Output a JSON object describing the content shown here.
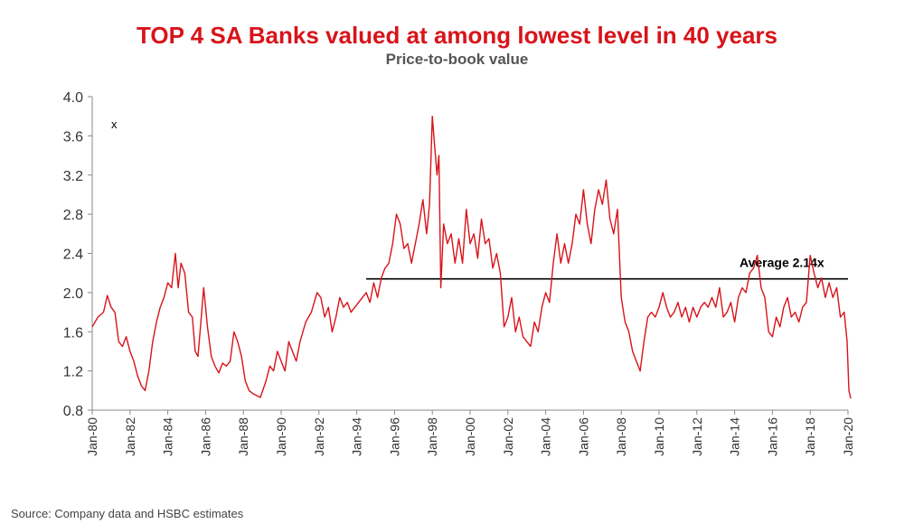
{
  "chart_data": {
    "type": "line",
    "title": "TOP 4 SA Banks valued at among lowest level in 40 years",
    "subtitle": "Price-to-book value",
    "source": "Source: Company data and HSBC estimates",
    "y_unit_marker": "x",
    "ylim": [
      0.8,
      4.0
    ],
    "y_ticks": [
      "4.0",
      "3.6",
      "3.2",
      "2.8",
      "2.4",
      "2.0",
      "1.6",
      "1.2",
      "0.8"
    ],
    "x_range": [
      1980,
      2020
    ],
    "x_ticks": [
      "Jan-80",
      "Jan-82",
      "Jan-84",
      "Jan-86",
      "Jan-88",
      "Jan-90",
      "Jan-92",
      "Jan-94",
      "Jan-96",
      "Jan-98",
      "Jan-00",
      "Jan-02",
      "Jan-04",
      "Jan-06",
      "Jan-08",
      "Jan-10",
      "Jan-12",
      "Jan-14",
      "Jan-16",
      "Jan-18",
      "Jan-20"
    ],
    "average": {
      "label": "Average  2.14x",
      "value": 2.14,
      "x_start": 1994.5,
      "x_end": 2020
    },
    "series": [
      {
        "color": "#d7141a",
        "points": [
          [
            1980.0,
            1.65
          ],
          [
            1980.3,
            1.75
          ],
          [
            1980.6,
            1.8
          ],
          [
            1980.8,
            1.97
          ],
          [
            1981.0,
            1.85
          ],
          [
            1981.2,
            1.8
          ],
          [
            1981.4,
            1.5
          ],
          [
            1981.6,
            1.45
          ],
          [
            1981.8,
            1.55
          ],
          [
            1982.0,
            1.4
          ],
          [
            1982.2,
            1.3
          ],
          [
            1982.4,
            1.15
          ],
          [
            1982.6,
            1.05
          ],
          [
            1982.8,
            1.0
          ],
          [
            1983.0,
            1.2
          ],
          [
            1983.2,
            1.5
          ],
          [
            1983.4,
            1.7
          ],
          [
            1983.6,
            1.85
          ],
          [
            1983.8,
            1.95
          ],
          [
            1984.0,
            2.1
          ],
          [
            1984.2,
            2.05
          ],
          [
            1984.4,
            2.4
          ],
          [
            1984.55,
            2.05
          ],
          [
            1984.7,
            2.3
          ],
          [
            1984.9,
            2.2
          ],
          [
            1985.1,
            1.8
          ],
          [
            1985.3,
            1.75
          ],
          [
            1985.45,
            1.4
          ],
          [
            1985.6,
            1.35
          ],
          [
            1985.75,
            1.7
          ],
          [
            1985.9,
            2.05
          ],
          [
            1986.1,
            1.65
          ],
          [
            1986.3,
            1.35
          ],
          [
            1986.5,
            1.25
          ],
          [
            1986.7,
            1.18
          ],
          [
            1986.9,
            1.28
          ],
          [
            1987.1,
            1.25
          ],
          [
            1987.3,
            1.3
          ],
          [
            1987.5,
            1.6
          ],
          [
            1987.7,
            1.5
          ],
          [
            1987.9,
            1.35
          ],
          [
            1988.1,
            1.1
          ],
          [
            1988.3,
            1.0
          ],
          [
            1988.5,
            0.97
          ],
          [
            1988.7,
            0.95
          ],
          [
            1988.9,
            0.93
          ],
          [
            1989.2,
            1.1
          ],
          [
            1989.4,
            1.25
          ],
          [
            1989.6,
            1.2
          ],
          [
            1989.8,
            1.4
          ],
          [
            1990.0,
            1.3
          ],
          [
            1990.2,
            1.2
          ],
          [
            1990.4,
            1.5
          ],
          [
            1990.6,
            1.4
          ],
          [
            1990.8,
            1.3
          ],
          [
            1991.0,
            1.5
          ],
          [
            1991.3,
            1.7
          ],
          [
            1991.6,
            1.8
          ],
          [
            1991.9,
            2.0
          ],
          [
            1992.1,
            1.95
          ],
          [
            1992.3,
            1.75
          ],
          [
            1992.5,
            1.85
          ],
          [
            1992.7,
            1.6
          ],
          [
            1992.9,
            1.75
          ],
          [
            1993.1,
            1.95
          ],
          [
            1993.3,
            1.85
          ],
          [
            1993.5,
            1.9
          ],
          [
            1993.7,
            1.8
          ],
          [
            1993.9,
            1.85
          ],
          [
            1994.1,
            1.9
          ],
          [
            1994.3,
            1.95
          ],
          [
            1994.5,
            2.0
          ],
          [
            1994.7,
            1.9
          ],
          [
            1994.9,
            2.1
          ],
          [
            1995.1,
            1.95
          ],
          [
            1995.3,
            2.15
          ],
          [
            1995.5,
            2.25
          ],
          [
            1995.7,
            2.3
          ],
          [
            1995.9,
            2.5
          ],
          [
            1996.1,
            2.8
          ],
          [
            1996.3,
            2.7
          ],
          [
            1996.5,
            2.45
          ],
          [
            1996.7,
            2.5
          ],
          [
            1996.9,
            2.3
          ],
          [
            1997.1,
            2.5
          ],
          [
            1997.3,
            2.7
          ],
          [
            1997.5,
            2.95
          ],
          [
            1997.7,
            2.6
          ],
          [
            1997.85,
            2.9
          ],
          [
            1998.0,
            3.8
          ],
          [
            1998.1,
            3.55
          ],
          [
            1998.25,
            3.2
          ],
          [
            1998.35,
            3.4
          ],
          [
            1998.45,
            2.05
          ],
          [
            1998.6,
            2.7
          ],
          [
            1998.8,
            2.5
          ],
          [
            1999.0,
            2.6
          ],
          [
            1999.2,
            2.3
          ],
          [
            1999.4,
            2.55
          ],
          [
            1999.6,
            2.3
          ],
          [
            1999.8,
            2.85
          ],
          [
            2000.0,
            2.5
          ],
          [
            2000.2,
            2.6
          ],
          [
            2000.4,
            2.35
          ],
          [
            2000.6,
            2.75
          ],
          [
            2000.8,
            2.5
          ],
          [
            2001.0,
            2.55
          ],
          [
            2001.2,
            2.25
          ],
          [
            2001.4,
            2.4
          ],
          [
            2001.6,
            2.2
          ],
          [
            2001.8,
            1.65
          ],
          [
            2002.0,
            1.75
          ],
          [
            2002.2,
            1.95
          ],
          [
            2002.4,
            1.6
          ],
          [
            2002.6,
            1.75
          ],
          [
            2002.8,
            1.55
          ],
          [
            2003.0,
            1.5
          ],
          [
            2003.2,
            1.45
          ],
          [
            2003.4,
            1.7
          ],
          [
            2003.6,
            1.6
          ],
          [
            2003.8,
            1.85
          ],
          [
            2004.0,
            2.0
          ],
          [
            2004.2,
            1.9
          ],
          [
            2004.4,
            2.3
          ],
          [
            2004.6,
            2.6
          ],
          [
            2004.8,
            2.3
          ],
          [
            2005.0,
            2.5
          ],
          [
            2005.2,
            2.3
          ],
          [
            2005.4,
            2.5
          ],
          [
            2005.6,
            2.8
          ],
          [
            2005.8,
            2.7
          ],
          [
            2006.0,
            3.05
          ],
          [
            2006.2,
            2.7
          ],
          [
            2006.4,
            2.5
          ],
          [
            2006.6,
            2.85
          ],
          [
            2006.8,
            3.05
          ],
          [
            2007.0,
            2.9
          ],
          [
            2007.2,
            3.15
          ],
          [
            2007.4,
            2.75
          ],
          [
            2007.6,
            2.6
          ],
          [
            2007.8,
            2.85
          ],
          [
            2008.0,
            1.95
          ],
          [
            2008.2,
            1.7
          ],
          [
            2008.4,
            1.6
          ],
          [
            2008.6,
            1.4
          ],
          [
            2008.8,
            1.3
          ],
          [
            2009.0,
            1.2
          ],
          [
            2009.2,
            1.5
          ],
          [
            2009.4,
            1.75
          ],
          [
            2009.6,
            1.8
          ],
          [
            2009.8,
            1.75
          ],
          [
            2010.0,
            1.85
          ],
          [
            2010.2,
            2.0
          ],
          [
            2010.4,
            1.85
          ],
          [
            2010.6,
            1.75
          ],
          [
            2010.8,
            1.8
          ],
          [
            2011.0,
            1.9
          ],
          [
            2011.2,
            1.75
          ],
          [
            2011.4,
            1.85
          ],
          [
            2011.6,
            1.7
          ],
          [
            2011.8,
            1.85
          ],
          [
            2012.0,
            1.75
          ],
          [
            2012.2,
            1.85
          ],
          [
            2012.4,
            1.9
          ],
          [
            2012.6,
            1.85
          ],
          [
            2012.8,
            1.95
          ],
          [
            2013.0,
            1.85
          ],
          [
            2013.2,
            2.05
          ],
          [
            2013.4,
            1.75
          ],
          [
            2013.6,
            1.8
          ],
          [
            2013.8,
            1.9
          ],
          [
            2014.0,
            1.7
          ],
          [
            2014.2,
            1.95
          ],
          [
            2014.4,
            2.05
          ],
          [
            2014.6,
            2.0
          ],
          [
            2014.8,
            2.2
          ],
          [
            2015.0,
            2.25
          ],
          [
            2015.2,
            2.38
          ],
          [
            2015.4,
            2.05
          ],
          [
            2015.6,
            1.95
          ],
          [
            2015.8,
            1.6
          ],
          [
            2016.0,
            1.55
          ],
          [
            2016.2,
            1.75
          ],
          [
            2016.4,
            1.65
          ],
          [
            2016.6,
            1.85
          ],
          [
            2016.8,
            1.95
          ],
          [
            2017.0,
            1.75
          ],
          [
            2017.2,
            1.8
          ],
          [
            2017.4,
            1.7
          ],
          [
            2017.6,
            1.85
          ],
          [
            2017.8,
            1.9
          ],
          [
            2018.0,
            2.38
          ],
          [
            2018.2,
            2.2
          ],
          [
            2018.4,
            2.05
          ],
          [
            2018.6,
            2.15
          ],
          [
            2018.8,
            1.95
          ],
          [
            2019.0,
            2.1
          ],
          [
            2019.2,
            1.95
          ],
          [
            2019.4,
            2.05
          ],
          [
            2019.6,
            1.75
          ],
          [
            2019.8,
            1.8
          ],
          [
            2019.95,
            1.5
          ],
          [
            2020.05,
            1.0
          ],
          [
            2020.15,
            0.92
          ]
        ]
      }
    ]
  }
}
